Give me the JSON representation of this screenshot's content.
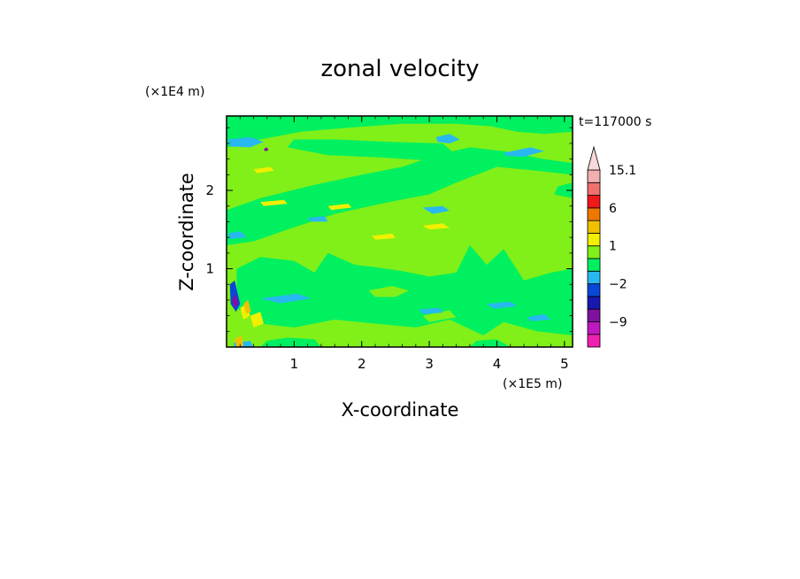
{
  "chart_data": {
    "type": "heatmap",
    "title": "zonal velocity",
    "xlabel": "X-coordinate",
    "ylabel": "Z-coordinate",
    "x_scale_note": "(×1E5 m)",
    "y_scale_note": "(×1E4 m)",
    "time_label": "t=117000 s",
    "xlim": [
      0,
      5.12
    ],
    "ylim": [
      0,
      2.95
    ],
    "x_ticks": [
      1,
      2,
      3,
      4,
      5
    ],
    "x_tick_labels": [
      "1",
      "2",
      "3",
      "4",
      "5"
    ],
    "y_ticks": [
      1,
      2
    ],
    "y_tick_labels": [
      "1",
      "2"
    ],
    "colorbar": {
      "levels": [
        -15.1,
        -12,
        -9,
        -6,
        -4,
        -2,
        -1,
        0,
        1,
        2,
        4,
        6,
        9,
        12,
        15.1
      ],
      "colors": [
        "#f020b0",
        "#c018c0",
        "#8010a0",
        "#1818b0",
        "#0848d8",
        "#28b8f0",
        "#00f060",
        "#80f018",
        "#f0f000",
        "#f0c000",
        "#f07800",
        "#f01818",
        "#f07070",
        "#f0b0b0"
      ],
      "labeled_ticks": [
        {
          "value": 15.1,
          "label": "15.1"
        },
        {
          "value": 6,
          "label": "6"
        },
        {
          "value": 1,
          "label": "1"
        },
        {
          "value": -2,
          "label": "−2"
        },
        {
          "value": -9,
          "label": "−9"
        }
      ]
    },
    "regions": [
      {
        "value": 0.3,
        "points": [
          [
            0,
            0
          ],
          [
            5.12,
            0
          ],
          [
            5.12,
            2.95
          ],
          [
            0,
            2.95
          ]
        ]
      },
      {
        "value": -0.5,
        "points": [
          [
            0,
            2.55
          ],
          [
            0.5,
            2.65
          ],
          [
            1.1,
            2.75
          ],
          [
            1.8,
            2.8
          ],
          [
            2.6,
            2.85
          ],
          [
            3.4,
            2.85
          ],
          [
            3.9,
            2.82
          ],
          [
            4.3,
            2.75
          ],
          [
            4.7,
            2.72
          ],
          [
            5.12,
            2.75
          ],
          [
            5.12,
            2.95
          ],
          [
            0,
            2.95
          ]
        ]
      },
      {
        "value": -0.5,
        "points": [
          [
            0.9,
            2.55
          ],
          [
            1.5,
            2.45
          ],
          [
            2.3,
            2.42
          ],
          [
            3.0,
            2.38
          ],
          [
            3.4,
            2.45
          ],
          [
            3.2,
            2.6
          ],
          [
            2.4,
            2.62
          ],
          [
            1.6,
            2.65
          ],
          [
            1.0,
            2.65
          ]
        ]
      },
      {
        "value": -0.5,
        "points": [
          [
            0,
            1.75
          ],
          [
            0.5,
            1.9
          ],
          [
            1.2,
            2.05
          ],
          [
            2.0,
            2.2
          ],
          [
            2.6,
            2.3
          ],
          [
            3.1,
            2.45
          ],
          [
            3.6,
            2.55
          ],
          [
            4.1,
            2.5
          ],
          [
            4.7,
            2.4
          ],
          [
            5.12,
            2.35
          ],
          [
            5.12,
            2.2
          ],
          [
            4.6,
            2.25
          ],
          [
            4.0,
            2.3
          ],
          [
            3.4,
            2.1
          ],
          [
            3.0,
            1.95
          ],
          [
            2.4,
            1.85
          ],
          [
            1.6,
            1.7
          ],
          [
            0.9,
            1.5
          ],
          [
            0.4,
            1.35
          ],
          [
            0,
            1.3
          ]
        ]
      },
      {
        "value": -0.5,
        "points": [
          [
            0.15,
            1.0
          ],
          [
            0.5,
            1.15
          ],
          [
            1.0,
            1.1
          ],
          [
            1.3,
            0.95
          ],
          [
            1.5,
            1.2
          ],
          [
            1.9,
            1.05
          ],
          [
            2.2,
            1.02
          ],
          [
            2.6,
            0.97
          ],
          [
            3.0,
            0.9
          ],
          [
            3.4,
            0.95
          ],
          [
            3.6,
            1.3
          ],
          [
            3.85,
            1.05
          ],
          [
            4.1,
            1.25
          ],
          [
            4.4,
            0.85
          ],
          [
            4.8,
            0.95
          ],
          [
            5.12,
            1.0
          ],
          [
            5.12,
            0.15
          ],
          [
            4.6,
            0.2
          ],
          [
            4.1,
            0.32
          ],
          [
            3.8,
            0.15
          ],
          [
            3.3,
            0.35
          ],
          [
            2.8,
            0.25
          ],
          [
            2.2,
            0.3
          ],
          [
            1.6,
            0.35
          ],
          [
            1.0,
            0.25
          ],
          [
            0.5,
            0.3
          ],
          [
            0.15,
            0.5
          ]
        ]
      },
      {
        "value": -0.5,
        "points": [
          [
            0.5,
            0
          ],
          [
            1.4,
            0
          ],
          [
            1.3,
            0.1
          ],
          [
            0.9,
            0.12
          ],
          [
            0.6,
            0.08
          ]
        ]
      },
      {
        "value": -0.5,
        "points": [
          [
            3.6,
            0
          ],
          [
            4.2,
            0
          ],
          [
            4.0,
            0.1
          ],
          [
            3.7,
            0.08
          ]
        ]
      },
      {
        "value": -0.5,
        "points": [
          [
            4.85,
            1.95
          ],
          [
            5.12,
            1.9
          ],
          [
            5.12,
            2.1
          ],
          [
            4.9,
            2.05
          ]
        ]
      },
      {
        "value": 0.3,
        "points": [
          [
            2.1,
            0.72
          ],
          [
            2.45,
            0.78
          ],
          [
            2.7,
            0.72
          ],
          [
            2.5,
            0.64
          ],
          [
            2.2,
            0.64
          ]
        ]
      },
      {
        "value": 0.3,
        "points": [
          [
            2.9,
            0.4
          ],
          [
            3.3,
            0.47
          ],
          [
            3.4,
            0.38
          ],
          [
            3.0,
            0.32
          ]
        ]
      },
      {
        "value": -1.5,
        "points": [
          [
            0.02,
            2.65
          ],
          [
            0.35,
            2.68
          ],
          [
            0.55,
            2.62
          ],
          [
            0.35,
            2.55
          ],
          [
            0.05,
            2.56
          ]
        ]
      },
      {
        "value": -1.5,
        "points": [
          [
            3.1,
            2.68
          ],
          [
            3.3,
            2.72
          ],
          [
            3.45,
            2.65
          ],
          [
            3.3,
            2.6
          ],
          [
            3.12,
            2.62
          ]
        ]
      },
      {
        "value": -1.5,
        "points": [
          [
            4.1,
            2.48
          ],
          [
            4.5,
            2.55
          ],
          [
            4.7,
            2.5
          ],
          [
            4.4,
            2.43
          ],
          [
            4.15,
            2.44
          ]
        ]
      },
      {
        "value": -1.5,
        "points": [
          [
            2.9,
            1.78
          ],
          [
            3.2,
            1.8
          ],
          [
            3.3,
            1.74
          ],
          [
            3.05,
            1.7
          ]
        ]
      },
      {
        "value": -1.5,
        "points": [
          [
            1.2,
            1.65
          ],
          [
            1.45,
            1.67
          ],
          [
            1.5,
            1.6
          ],
          [
            1.25,
            1.6
          ]
        ]
      },
      {
        "value": -1.5,
        "points": [
          [
            0.02,
            1.45
          ],
          [
            0.2,
            1.48
          ],
          [
            0.3,
            1.4
          ],
          [
            0.05,
            1.38
          ]
        ]
      },
      {
        "value": -1.5,
        "points": [
          [
            0.5,
            0.62
          ],
          [
            1.05,
            0.68
          ],
          [
            1.25,
            0.62
          ],
          [
            0.8,
            0.56
          ]
        ]
      },
      {
        "value": -1.5,
        "points": [
          [
            2.85,
            0.48
          ],
          [
            3.15,
            0.5
          ],
          [
            3.2,
            0.44
          ],
          [
            2.9,
            0.42
          ]
        ]
      },
      {
        "value": -1.5,
        "points": [
          [
            3.85,
            0.55
          ],
          [
            4.2,
            0.58
          ],
          [
            4.3,
            0.52
          ],
          [
            3.95,
            0.49
          ]
        ]
      },
      {
        "value": -1.5,
        "points": [
          [
            4.45,
            0.38
          ],
          [
            4.7,
            0.42
          ],
          [
            4.8,
            0.35
          ],
          [
            4.5,
            0.33
          ]
        ]
      },
      {
        "value": -1.5,
        "points": [
          [
            0.1,
            0.05
          ],
          [
            0.35,
            0.08
          ],
          [
            0.4,
            0.0
          ],
          [
            0.12,
            0.0
          ]
        ]
      },
      {
        "value": -3,
        "points": [
          [
            0.05,
            0.8
          ],
          [
            0.12,
            0.85
          ],
          [
            0.2,
            0.55
          ],
          [
            0.14,
            0.45
          ],
          [
            0.06,
            0.55
          ]
        ]
      },
      {
        "value": -7,
        "points": [
          [
            0.08,
            0.6
          ],
          [
            0.14,
            0.68
          ],
          [
            0.18,
            0.55
          ],
          [
            0.12,
            0.5
          ]
        ]
      },
      {
        "value": -7,
        "points": [
          [
            0.55,
            2.53
          ],
          [
            0.6,
            2.55
          ],
          [
            0.62,
            2.51
          ],
          [
            0.57,
            2.5
          ]
        ]
      },
      {
        "value": 1.5,
        "points": [
          [
            0.4,
            2.27
          ],
          [
            0.65,
            2.3
          ],
          [
            0.7,
            2.25
          ],
          [
            0.45,
            2.22
          ]
        ]
      },
      {
        "value": 1.5,
        "points": [
          [
            0.5,
            1.85
          ],
          [
            0.85,
            1.88
          ],
          [
            0.9,
            1.83
          ],
          [
            0.55,
            1.8
          ]
        ]
      },
      {
        "value": 1.5,
        "points": [
          [
            1.5,
            1.8
          ],
          [
            1.8,
            1.83
          ],
          [
            1.85,
            1.78
          ],
          [
            1.55,
            1.75
          ]
        ]
      },
      {
        "value": 1.5,
        "points": [
          [
            2.15,
            1.42
          ],
          [
            2.45,
            1.45
          ],
          [
            2.5,
            1.39
          ],
          [
            2.2,
            1.37
          ]
        ]
      },
      {
        "value": 1.5,
        "points": [
          [
            2.9,
            1.55
          ],
          [
            3.2,
            1.58
          ],
          [
            3.3,
            1.52
          ],
          [
            3.0,
            1.5
          ]
        ]
      },
      {
        "value": 1.5,
        "points": [
          [
            0.2,
            0.5
          ],
          [
            0.3,
            0.55
          ],
          [
            0.35,
            0.4
          ],
          [
            0.25,
            0.35
          ]
        ]
      },
      {
        "value": 1.5,
        "points": [
          [
            0.35,
            0.4
          ],
          [
            0.5,
            0.45
          ],
          [
            0.55,
            0.3
          ],
          [
            0.4,
            0.25
          ]
        ]
      },
      {
        "value": 3,
        "points": [
          [
            0.25,
            0.55
          ],
          [
            0.32,
            0.6
          ],
          [
            0.36,
            0.45
          ],
          [
            0.29,
            0.42
          ]
        ]
      },
      {
        "value": 3,
        "points": [
          [
            0.12,
            0.1
          ],
          [
            0.22,
            0.15
          ],
          [
            0.25,
            0.02
          ],
          [
            0.15,
            0.0
          ]
        ]
      }
    ]
  }
}
